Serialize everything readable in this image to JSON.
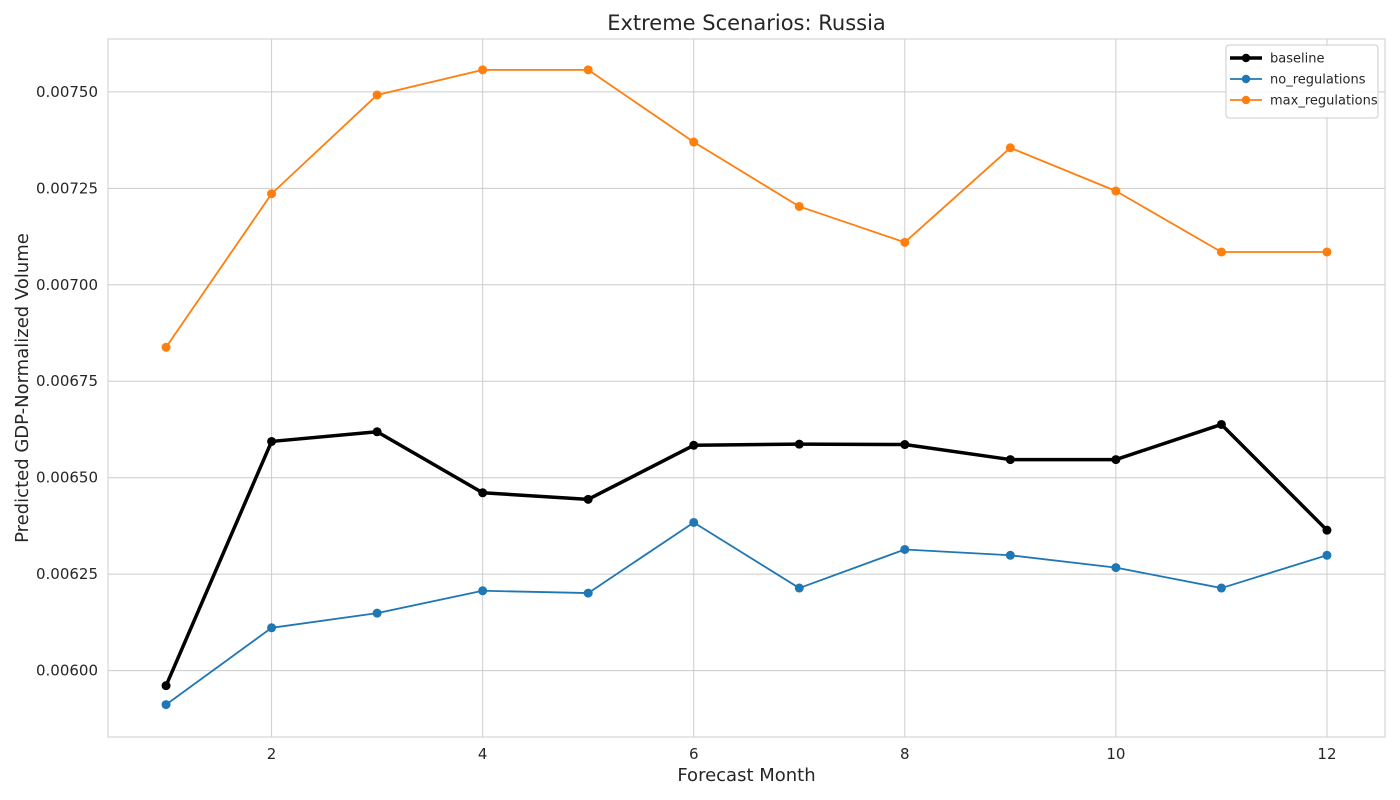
{
  "chart_data": {
    "type": "line",
    "title": "Extreme Scenarios: Russia",
    "xlabel": "Forecast Month",
    "ylabel": "Predicted GDP-Normalized Volume",
    "x": [
      1,
      2,
      3,
      4,
      5,
      6,
      7,
      8,
      9,
      10,
      11,
      12
    ],
    "xlim": [
      0.45,
      12.55
    ],
    "ylim": [
      0.005828,
      0.007637
    ],
    "xticks": [
      2,
      4,
      6,
      8,
      10,
      12
    ],
    "xtick_labels": [
      "2",
      "4",
      "6",
      "8",
      "10",
      "12"
    ],
    "yticks": [
      0.006,
      0.00625,
      0.0065,
      0.00675,
      0.007,
      0.00725,
      0.0075
    ],
    "ytick_labels": [
      "0.00600",
      "0.00625",
      "0.00650",
      "0.00675",
      "0.00700",
      "0.00725",
      "0.00750"
    ],
    "grid": true,
    "legend_position": "top-right",
    "series": [
      {
        "name": "baseline",
        "color": "#000000",
        "values": [
          0.005961,
          0.006594,
          0.006619,
          0.006461,
          0.006444,
          0.006584,
          0.006587,
          0.006586,
          0.006547,
          0.006547,
          0.006638,
          0.006364
        ]
      },
      {
        "name": "no_regulations",
        "color": "#1f77b4",
        "values": [
          0.005912,
          0.006111,
          0.006149,
          0.006207,
          0.006201,
          0.006384,
          0.006214,
          0.006314,
          0.006299,
          0.006267,
          0.006214,
          0.006299
        ]
      },
      {
        "name": "max_regulations",
        "color": "#ff7f0e",
        "values": [
          0.006838,
          0.007236,
          0.007492,
          0.007557,
          0.007557,
          0.00737,
          0.007203,
          0.00711,
          0.007355,
          0.007243,
          0.007085,
          0.007085
        ]
      }
    ]
  }
}
